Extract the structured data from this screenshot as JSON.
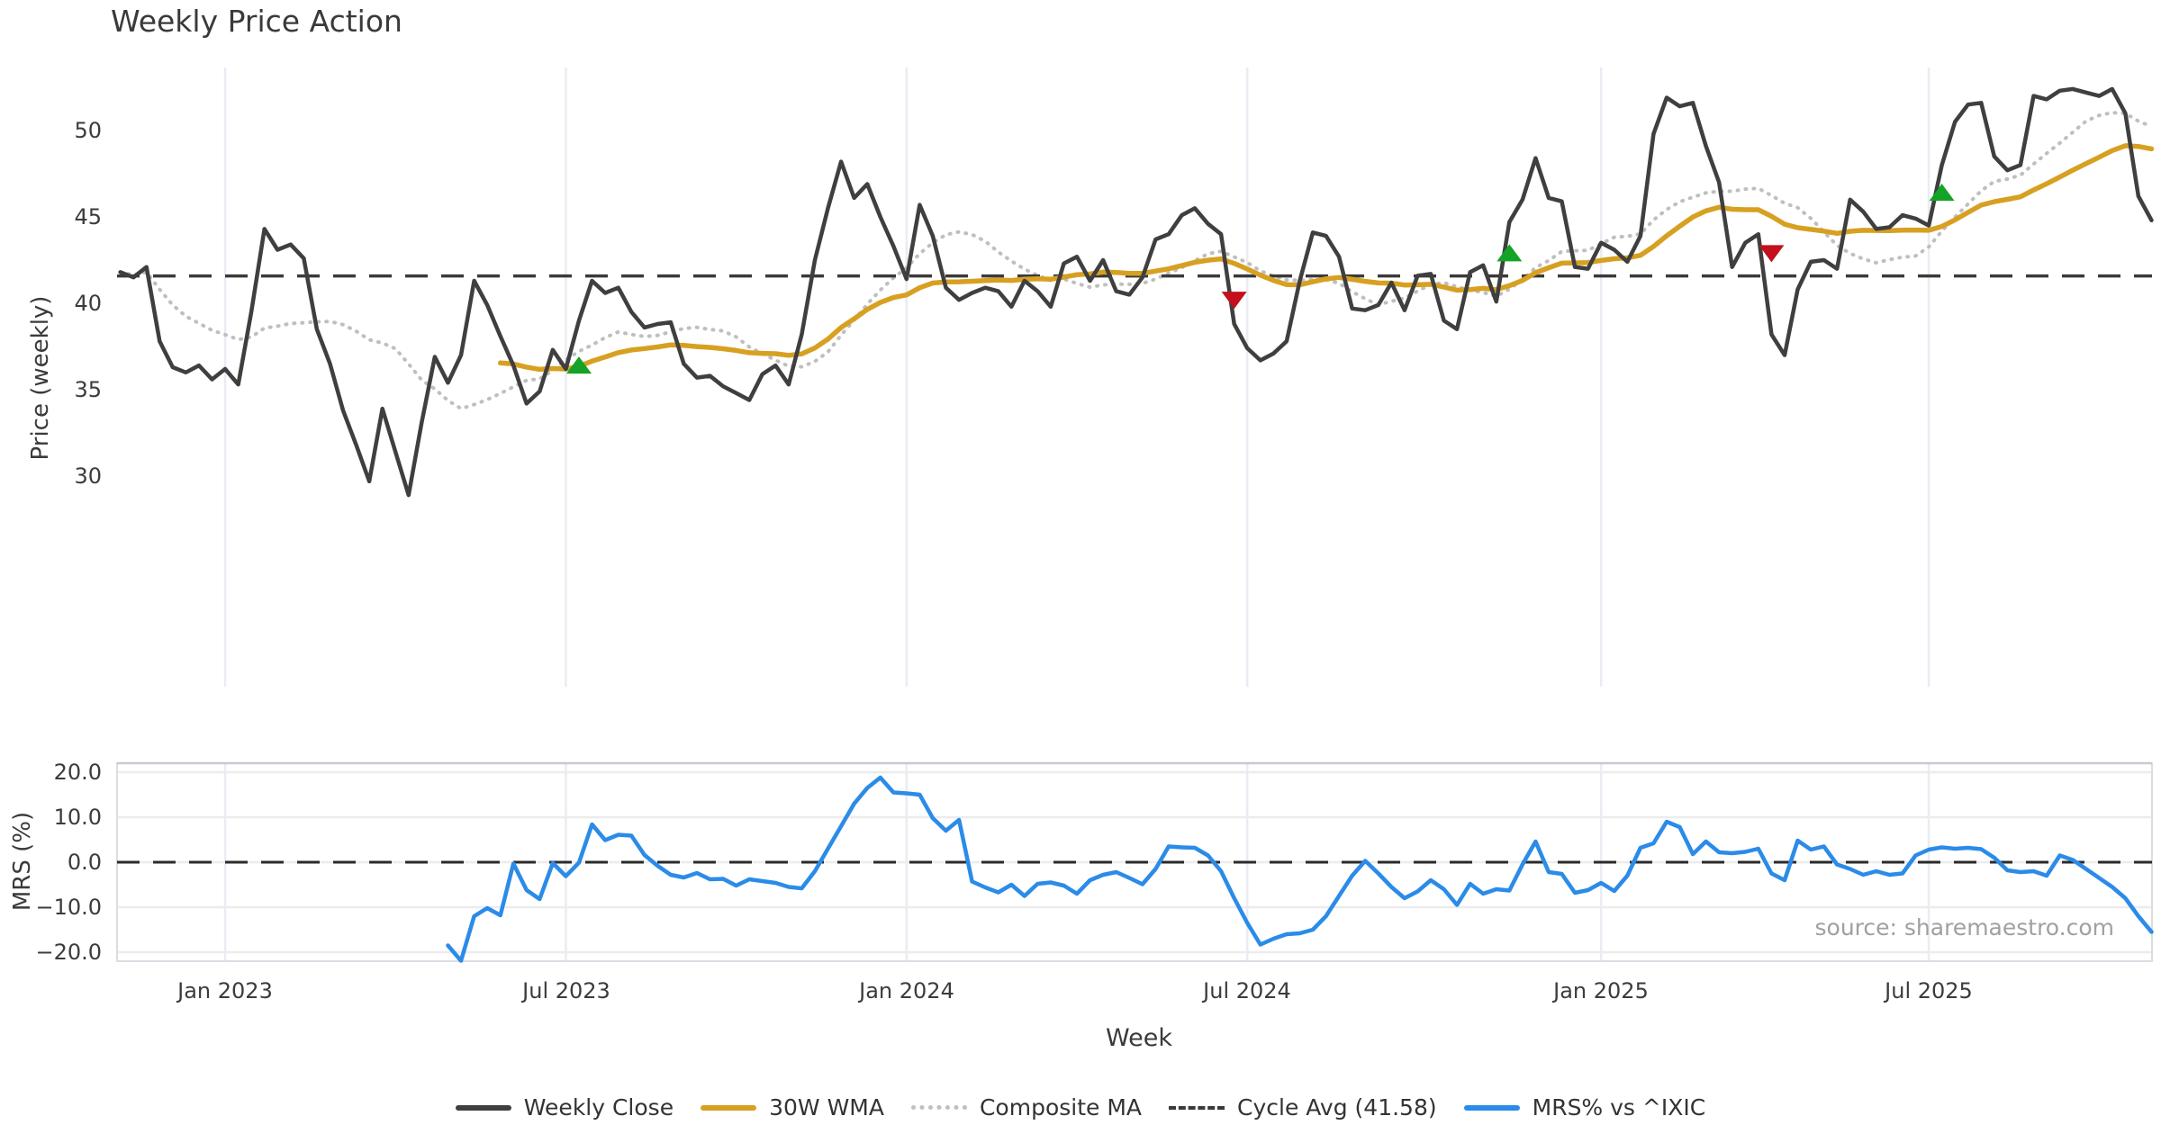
{
  "title": "Weekly Price Action",
  "source_note": "source: sharemaestro.com",
  "colors": {
    "close": "#3f3f3f",
    "wma30": "#d7a021",
    "composite": "#bfbfbf",
    "cycle_avg": "#3a3a3a",
    "mrs": "#2b8be8",
    "buy_marker": "#13a327",
    "sell_marker": "#c3101c",
    "vgrid": "#e9ecf3",
    "hgrid": "#ececec",
    "panel_border": "#c6cad1"
  },
  "chart_data": [
    {
      "type": "line",
      "panel": "price",
      "title": "Weekly Price Action",
      "xlabel": "Week",
      "ylabel": "Price (weekly)",
      "ylim": [
        17.8,
        53.6
      ],
      "yticks": [
        50,
        45,
        40,
        35,
        30
      ],
      "ytick_labels": [
        "50",
        "45",
        "40",
        "35",
        "30"
      ],
      "xtick_weeks": [
        8,
        34,
        60,
        86,
        113,
        138
      ],
      "xtick_labels": [
        "Jan 2023",
        "Jul 2023",
        "Jan 2024",
        "Jul 2024",
        "Jan 2025",
        "Jul 2025"
      ],
      "grid": "vertical",
      "legend_position": "bottom-center",
      "cycle_avg": 41.58,
      "series": [
        {
          "name": "Weekly Close",
          "style": "solid",
          "values": [
            41.8,
            41.5,
            42.1,
            37.8,
            36.3,
            36.0,
            36.4,
            35.6,
            36.2,
            35.3,
            39.5,
            44.3,
            43.1,
            43.4,
            42.6,
            38.5,
            36.5,
            33.8,
            31.8,
            29.7,
            33.9,
            31.4,
            28.9,
            33.1,
            36.9,
            35.4,
            37.0,
            41.3,
            39.9,
            38.1,
            36.4,
            34.2,
            34.9,
            37.3,
            36.2,
            39.0,
            41.3,
            40.6,
            40.9,
            39.5,
            38.6,
            38.8,
            38.9,
            36.5,
            35.7,
            35.8,
            35.2,
            34.8,
            34.4,
            35.9,
            36.4,
            35.3,
            38.2,
            42.5,
            45.5,
            48.2,
            46.1,
            46.9,
            45.0,
            43.3,
            41.4,
            45.7,
            43.9,
            40.9,
            40.2,
            40.6,
            40.9,
            40.7,
            39.8,
            41.3,
            40.7,
            39.8,
            42.3,
            42.7,
            41.3,
            42.5,
            40.7,
            40.5,
            41.5,
            43.7,
            44.0,
            45.1,
            45.5,
            44.6,
            44.0,
            38.8,
            37.4,
            36.7,
            37.1,
            37.8,
            41.3,
            44.1,
            43.9,
            42.7,
            39.7,
            39.6,
            39.9,
            41.2,
            39.6,
            41.6,
            41.7,
            39.0,
            38.5,
            41.8,
            42.2,
            40.1,
            44.7,
            46.0,
            48.4,
            46.1,
            45.9,
            42.1,
            42.0,
            43.5,
            43.1,
            42.4,
            43.9,
            49.8,
            51.9,
            51.4,
            51.6,
            49.1,
            47.0,
            42.1,
            43.5,
            44.0,
            38.2,
            37.0,
            40.8,
            42.4,
            42.5,
            42.0,
            46.0,
            45.3,
            44.3,
            44.4,
            45.1,
            44.9,
            44.5,
            48.0,
            50.5,
            51.5,
            51.6,
            48.5,
            47.7,
            48.0,
            52.0,
            51.8,
            52.3,
            52.4,
            52.2,
            52.0,
            52.4,
            51.0,
            46.2,
            44.8
          ]
        },
        {
          "name": "30W WMA",
          "style": "solid",
          "derived": "linear_weighted_ma",
          "window": 30
        },
        {
          "name": "Composite MA",
          "style": "dotted",
          "derived": "sma",
          "window": 12
        },
        {
          "name": "Cycle Avg (41.58)",
          "style": "dashed",
          "constant": 41.58
        }
      ],
      "markers": {
        "buy": [
          {
            "week": 35,
            "price": 36.4
          },
          {
            "week": 106,
            "price": 42.9
          },
          {
            "week": 139,
            "price": 46.4
          }
        ],
        "sell": [
          {
            "week": 85,
            "price": 40.2
          },
          {
            "week": 126,
            "price": 42.9
          }
        ]
      }
    },
    {
      "type": "line",
      "panel": "mrs",
      "ylabel": "MRS (%)",
      "ylim": [
        -22.0,
        22.6
      ],
      "yticks": [
        20.0,
        10.0,
        0.0,
        -10.0,
        -20.0
      ],
      "ytick_labels": [
        "20.0",
        "10.0",
        "0.0",
        "−10.0",
        "−20.0"
      ],
      "zero_line": 0,
      "grid": "both",
      "series": [
        {
          "name": "MRS% vs ^IXIC",
          "style": "solid",
          "values": [
            null,
            null,
            null,
            null,
            null,
            null,
            null,
            null,
            null,
            null,
            null,
            null,
            null,
            null,
            null,
            null,
            null,
            null,
            null,
            null,
            null,
            null,
            null,
            null,
            null,
            -18.5,
            -21.9,
            -12.0,
            -10.2,
            -11.8,
            -0.3,
            -6.2,
            -8.2,
            -0.2,
            -3.1,
            -0.1,
            8.4,
            4.9,
            6.1,
            5.9,
            1.6,
            -0.8,
            -2.8,
            -3.4,
            -2.4,
            -3.8,
            -3.7,
            -5.2,
            -3.8,
            -4.2,
            -4.6,
            -5.5,
            -5.8,
            -2.0,
            3.0,
            8.0,
            13.0,
            16.5,
            18.8,
            15.5,
            15.3,
            15.0,
            9.8,
            7.0,
            9.4,
            -4.3,
            -5.6,
            -6.7,
            -5.0,
            -7.5,
            -4.8,
            -4.5,
            -5.2,
            -7.0,
            -4.0,
            -2.8,
            -2.2,
            -3.5,
            -4.9,
            -1.5,
            3.5,
            3.3,
            3.2,
            1.5,
            -2.0,
            -8.0,
            -13.5,
            -18.3,
            -17.0,
            -16.0,
            -15.8,
            -15.0,
            -12.0,
            -7.5,
            -3.0,
            0.3,
            -2.5,
            -5.5,
            -8.0,
            -6.5,
            -4.0,
            -6.0,
            -9.5,
            -4.8,
            -7.0,
            -6.0,
            -6.3,
            -0.5,
            4.6,
            -2.2,
            -2.6,
            -6.8,
            -6.2,
            -4.6,
            -6.4,
            -3.0,
            3.2,
            4.2,
            9.0,
            7.8,
            1.8,
            4.6,
            2.2,
            2.0,
            2.3,
            3.0,
            -2.5,
            -4.0,
            4.8,
            2.8,
            3.5,
            -0.5,
            -1.5,
            -2.8,
            -2.0,
            -2.8,
            -2.5,
            1.5,
            2.8,
            3.3,
            3.0,
            3.2,
            2.9,
            1.0,
            -1.8,
            -2.2,
            -2.0,
            -3.0,
            1.5,
            0.5,
            -1.5,
            -3.5,
            -5.5,
            -8.0,
            -12.0,
            -15.5
          ]
        }
      ]
    }
  ],
  "legend": {
    "items": [
      {
        "label": "Weekly Close",
        "style": "solid",
        "color": "#3f3f3f"
      },
      {
        "label": "30W WMA",
        "style": "solid",
        "color": "#d7a021"
      },
      {
        "label": "Composite MA",
        "style": "dotted",
        "color": "#bfbfbf"
      },
      {
        "label": "Cycle Avg (41.58)",
        "style": "dashed",
        "color": "#3a3a3a"
      },
      {
        "label": "MRS% vs ^IXIC",
        "style": "solid",
        "color": "#2b8be8"
      }
    ]
  }
}
